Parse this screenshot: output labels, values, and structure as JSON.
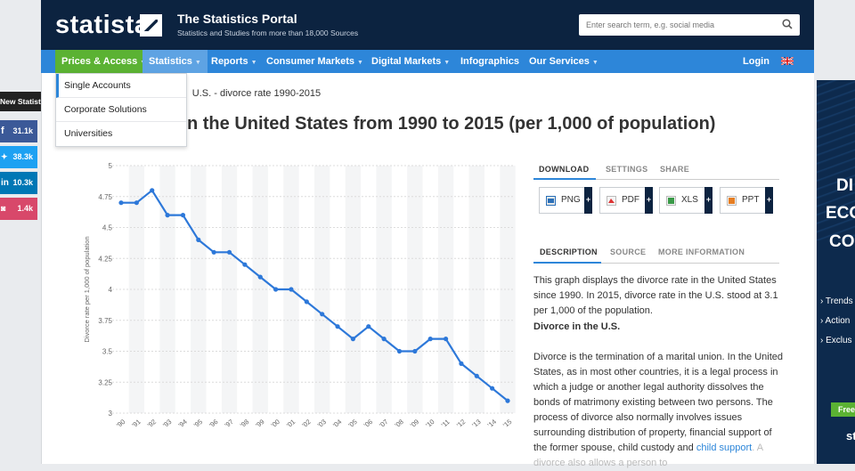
{
  "header": {
    "logo": "statista",
    "portal_title": "The Statistics Portal",
    "portal_subtitle": "Statistics and Studies from more than 18,000 Sources",
    "search_placeholder": "Enter search term, e.g. social media"
  },
  "nav": {
    "items": [
      {
        "label": "Prices & Access"
      },
      {
        "label": "Statistics"
      },
      {
        "label": "Reports"
      },
      {
        "label": "Consumer Markets"
      },
      {
        "label": "Digital Markets"
      },
      {
        "label": "Infographics"
      },
      {
        "label": "Our Services"
      }
    ],
    "login": "Login",
    "language_icon": "uk-flag-icon"
  },
  "dropdown": {
    "items": [
      {
        "label": "Single Accounts"
      },
      {
        "label": "Corporate Solutions"
      },
      {
        "label": "Universities"
      }
    ]
  },
  "social": {
    "new_label": "New Statista",
    "buttons": [
      {
        "icon": "facebook-icon",
        "count": "31.1k",
        "color": "#3b5998"
      },
      {
        "icon": "twitter-icon",
        "count": "38.3k",
        "color": "#1da1f2"
      },
      {
        "icon": "linkedin-icon",
        "count": "10.3k",
        "color": "#0077b5"
      },
      {
        "icon": "instagram-icon",
        "count": "1.4k",
        "color": "#d8486a"
      }
    ]
  },
  "breadcrumb": "U.S. - divorce rate 1990-2015",
  "page_title": "n the United States from 1990 to 2015 (per 1,000 of population)",
  "chart_data": {
    "type": "line",
    "ylabel": "Divorce rate per 1,000 of population",
    "ylim": [
      3,
      5
    ],
    "yticks": [
      "3",
      "3.25",
      "3.5",
      "3.75",
      "4",
      "4.25",
      "4.5",
      "4.75",
      "5"
    ],
    "categories": [
      "'90",
      "'91",
      "'92",
      "'93",
      "'94",
      "'95",
      "'96",
      "'97",
      "'98",
      "'99",
      "'00",
      "'01",
      "'02",
      "'03",
      "'04",
      "'05",
      "'06",
      "'07",
      "'08",
      "'09",
      "'10",
      "'11",
      "'12",
      "'13",
      "'14",
      "'15"
    ],
    "values": [
      4.7,
      4.7,
      4.8,
      4.6,
      4.6,
      4.4,
      4.3,
      4.3,
      4.2,
      4.1,
      4.0,
      4.0,
      3.9,
      3.8,
      3.7,
      3.6,
      3.7,
      3.6,
      3.5,
      3.5,
      3.6,
      3.6,
      3.4,
      3.3,
      3.2,
      3.1
    ],
    "line_color": "#2d78d9",
    "grid": true
  },
  "tools_tabs": [
    {
      "label": "DOWNLOAD"
    },
    {
      "label": "SETTINGS"
    },
    {
      "label": "SHARE"
    }
  ],
  "downloads": [
    {
      "label": "PNG",
      "icon": "png-file-icon"
    },
    {
      "label": "PDF",
      "icon": "pdf-file-icon"
    },
    {
      "label": "XLS",
      "icon": "xls-file-icon"
    },
    {
      "label": "PPT",
      "icon": "ppt-file-icon"
    }
  ],
  "download_plus": "+",
  "info_tabs": [
    {
      "label": "DESCRIPTION"
    },
    {
      "label": "SOURCE"
    },
    {
      "label": "MORE INFORMATION"
    }
  ],
  "description": {
    "paragraph1": "This graph displays the divorce rate in the United States since 1990. In 2015, divorce rate in the U.S. stood at 3.1 per 1,000 of the population.",
    "heading": "Divorce in the U.S.",
    "paragraph2_start": "Divorce is the termination of a marital union. In the United States, as in most other countries, it is a legal process in which a judge or another legal authority dissolves the bonds of matrimony existing between two persons. The process of divorce also normally involves issues surrounding distribution of property, financial support of the former spouse, child custody and ",
    "paragraph2_link": "child support",
    "paragraph2_end": ". A divorce also allows a person to"
  },
  "ad": {
    "lines": [
      "DI",
      "ECO",
      "CO"
    ],
    "bullets": [
      "› Trends",
      "› Action",
      "› Exclus"
    ],
    "button": "Free",
    "logo": "st"
  }
}
